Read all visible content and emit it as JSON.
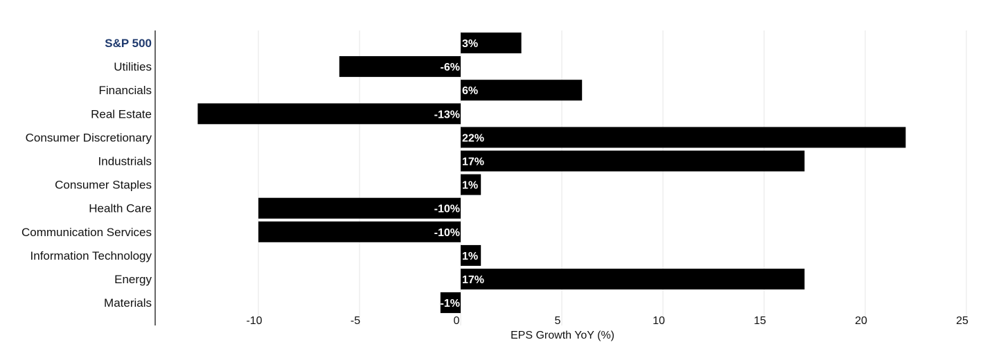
{
  "chart_data": {
    "type": "bar",
    "orientation": "horizontal",
    "categories": [
      "S&P 500",
      "Utilities",
      "Financials",
      "Real Estate",
      "Consumer Discretionary",
      "Industrials",
      "Consumer Staples",
      "Health Care",
      "Communication Services",
      "Information Technology",
      "Energy",
      "Materials"
    ],
    "values": [
      3,
      -6,
      6,
      -13,
      22,
      17,
      1,
      -10,
      -10,
      1,
      17,
      -1
    ],
    "data_labels": [
      "3%",
      "-6%",
      "6%",
      "-13%",
      "22%",
      "17%",
      "1%",
      "-10%",
      "-10%",
      "1%",
      "17%",
      "-1%"
    ],
    "highlight_category": "S&P 500",
    "xlabel": "EPS Growth YoY (%)",
    "ylabel": "",
    "title": "",
    "xlim": [
      -15,
      25
    ],
    "xticks": [
      -10,
      -5,
      0,
      5,
      10,
      15,
      20,
      25
    ],
    "grid": true,
    "legend": "none",
    "colors": {
      "bar": "#000000",
      "data_label": "#ffffff",
      "highlight_label": "#1f3a6e",
      "grid": "#e6e6e6"
    }
  }
}
